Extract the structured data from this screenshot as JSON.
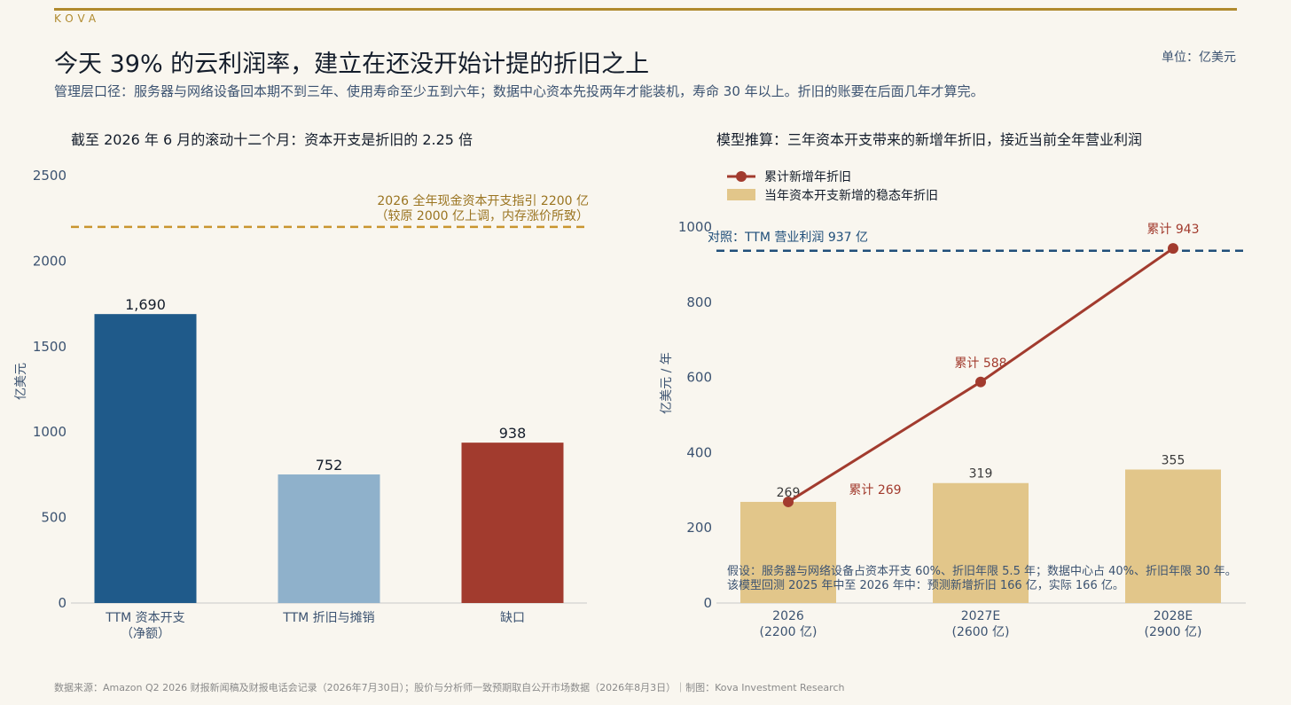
{
  "header": {
    "brand": "KOVA",
    "title": "今天 39% 的云利润率，建立在还没开始计提的折旧之上",
    "subtitle": "管理层口径：服务器与网络设备回本期不到三年、使用寿命至少五到六年；数据中心资本先投两年才能装机，寿命 30 年以上。折旧的账要在后面几年才算完。",
    "unit": "单位：亿美元"
  },
  "footer": "数据来源：Amazon Q2 2026 财报新闻稿及财报电话会记录（2026年7月30日）；股价与分析师一致预期取自公开市场数据（2026年8月3日）｜制图：Kova Investment Research",
  "colors": {
    "accent_gold": "#b08a2e",
    "capex_blue": "#1f5a8a",
    "depr_light_blue": "#8fb1cb",
    "gap_red": "#a23b2e",
    "steady_bar": "#e2c68a",
    "line_red": "#a23b2e",
    "reference_blue": "#1f4e79"
  },
  "chart_data": [
    {
      "type": "bar",
      "title": "截至 2026 年 6 月的滚动十二个月：资本开支是折旧的 2.25 倍",
      "ylabel": "亿美元",
      "ylim": [
        0,
        2500
      ],
      "yticks": [
        0,
        500,
        1000,
        1500,
        2000,
        2500
      ],
      "categories": [
        "TTM 资本开支\n（净额）",
        "TTM 折旧与摊销",
        "缺口"
      ],
      "values": [
        1690,
        752,
        938
      ],
      "value_labels": [
        "1,690",
        "752",
        "938"
      ],
      "bar_colors": [
        "#1f5a8a",
        "#8fb1cb",
        "#a23b2e"
      ],
      "reference_line": {
        "value": 2200,
        "label_line1": "2026 全年现金资本开支指引 2200 亿",
        "label_line2": "（较原 2000 亿上调，内存涨价所致）"
      }
    },
    {
      "type": "bar+line",
      "title": "模型推算：三年资本开支带来的新增年折旧，接近当前全年营业利润",
      "ylabel": "亿美元 / 年",
      "ylim": [
        0,
        1000
      ],
      "yticks": [
        0,
        200,
        400,
        600,
        800,
        1000
      ],
      "categories": [
        "2026\n(2200 亿)",
        "2027E\n(2600 亿)",
        "2028E\n(2900 亿)"
      ],
      "series": [
        {
          "name": "当年资本开支新增的稳态年折旧",
          "kind": "bar",
          "values": [
            269,
            319,
            355
          ],
          "labels": [
            "269",
            "319",
            "355"
          ]
        },
        {
          "name": "累计新增年折旧",
          "kind": "line",
          "values": [
            269,
            588,
            943
          ],
          "labels": [
            "累计 269",
            "累计 588",
            "累计 943"
          ]
        }
      ],
      "reference_line": {
        "value": 937,
        "label": "对照：TTM 营业利润 937 亿"
      },
      "legend": "top-left",
      "annotation_line1": "假设：服务器与网络设备占资本开支 60%、折旧年限 5.5 年；数据中心占 40%、折旧年限 30 年。",
      "annotation_line2": "该模型回测 2025 年中至 2026 年中：预测新增折旧 166 亿，实际 166 亿。"
    }
  ]
}
